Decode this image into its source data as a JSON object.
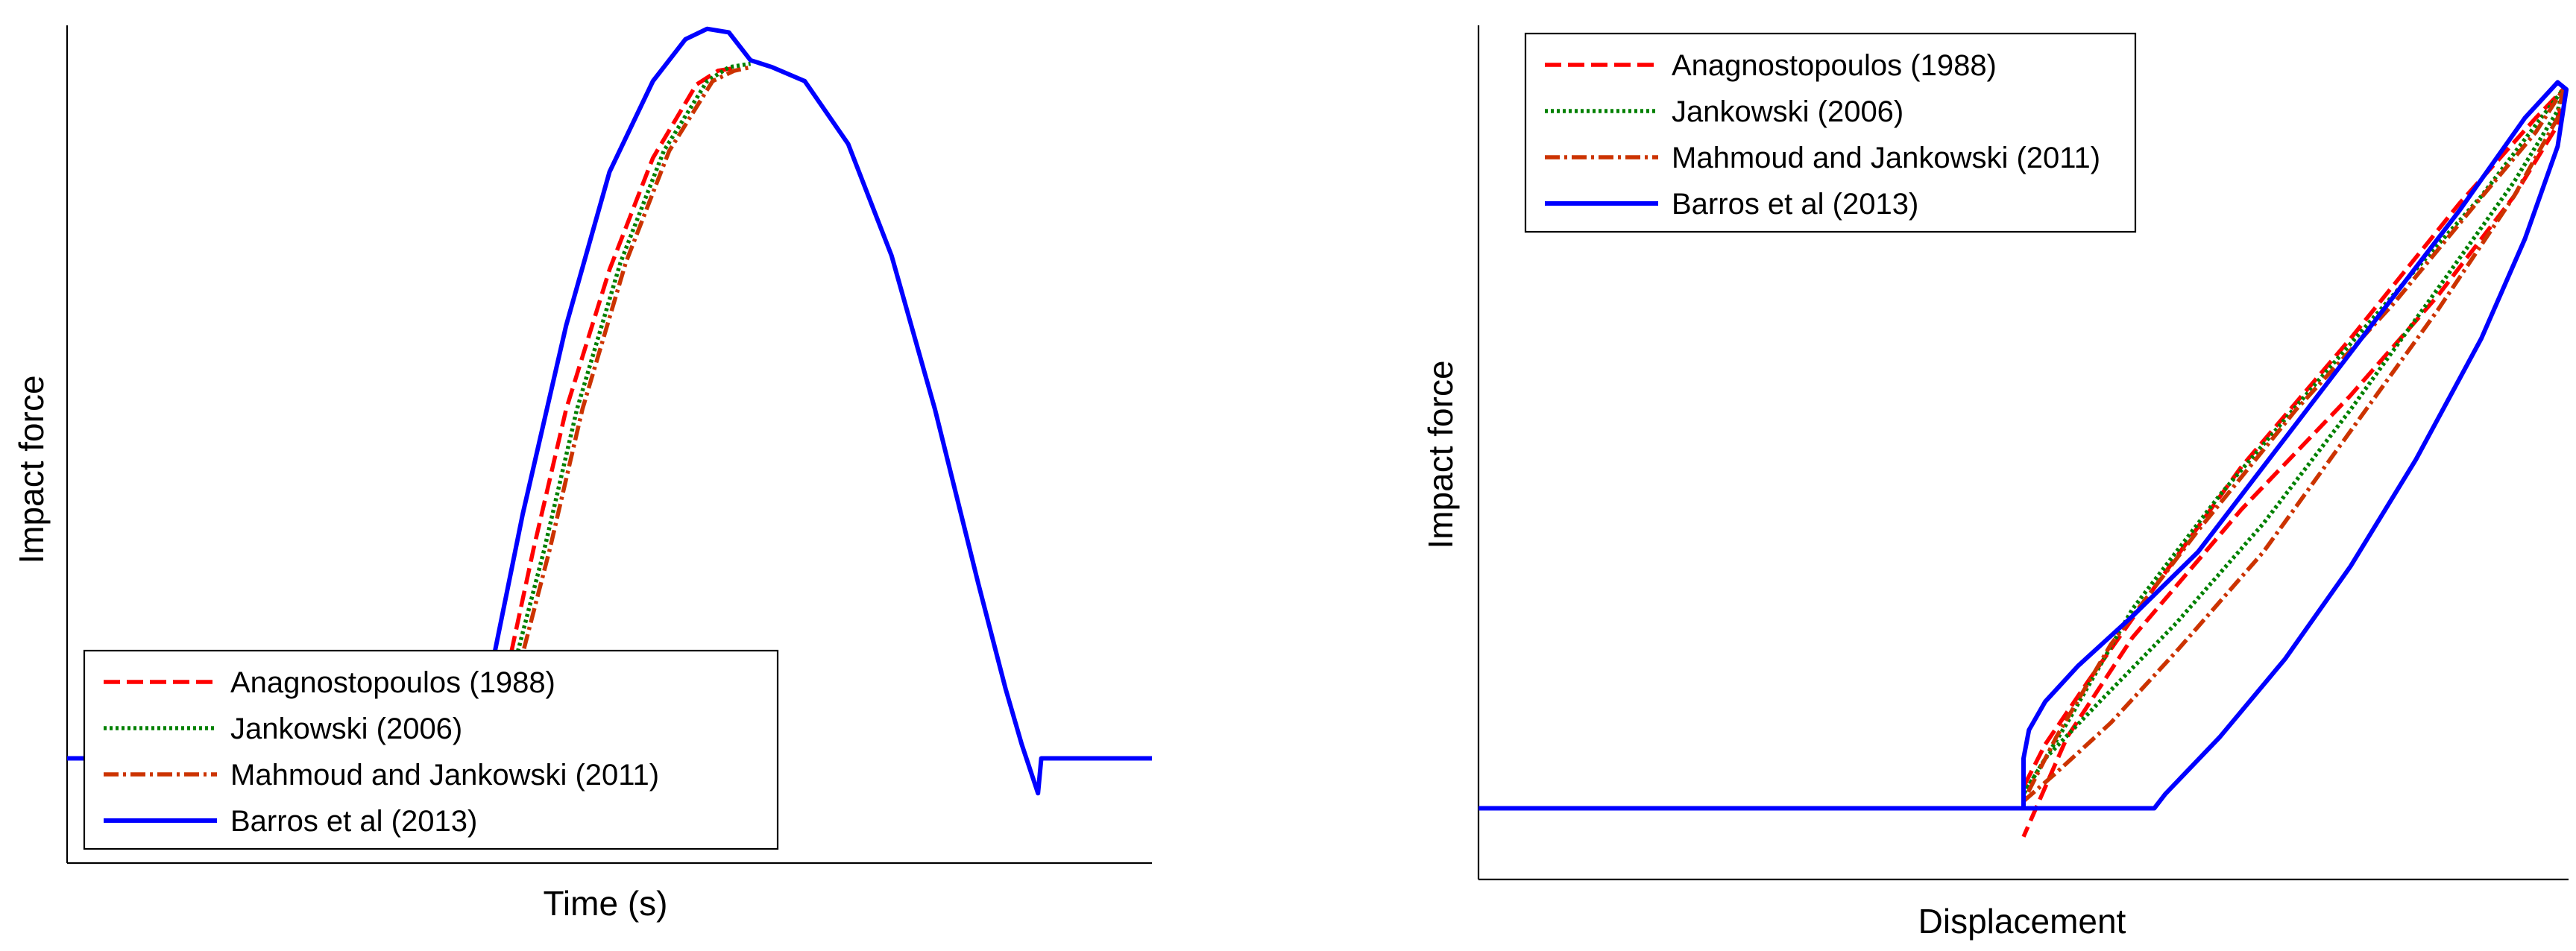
{
  "chart_data": [
    {
      "type": "line",
      "title": "",
      "xlabel": "Time (s)",
      "ylabel": "Impact force",
      "legend_position": "bottom-left",
      "x_ticks": "none",
      "y_ticks": "none",
      "grid": false,
      "x_range": [
        0,
        1
      ],
      "y_range": [
        -0.15,
        1.05
      ],
      "series": [
        {
          "name": "Anagnostopoulos (1988)",
          "color": "#ff0000",
          "dash": "22,9",
          "x": [
            0.405,
            0.43,
            0.46,
            0.5,
            0.54,
            0.58,
            0.6,
            0.62
          ],
          "y": [
            0.12,
            0.3,
            0.5,
            0.7,
            0.86,
            0.965,
            0.985,
            0.99
          ]
        },
        {
          "name": "Jankowski (2006)",
          "color": "#008000",
          "dash": "4,4",
          "x": [
            0.41,
            0.44,
            0.47,
            0.51,
            0.55,
            0.59,
            0.61,
            0.63
          ],
          "y": [
            0.12,
            0.3,
            0.5,
            0.71,
            0.87,
            0.97,
            0.99,
            0.995
          ]
        },
        {
          "name": "Mahmoud and Jankowski (2011)",
          "color": "#cc3300",
          "dash": "20,6,4,6",
          "x": [
            0.415,
            0.445,
            0.475,
            0.515,
            0.555,
            0.595,
            0.615,
            0.63
          ],
          "y": [
            0.12,
            0.3,
            0.5,
            0.71,
            0.87,
            0.97,
            0.985,
            0.99
          ]
        },
        {
          "name": "Barros et al (2013)",
          "color": "#0000ff",
          "dash": "",
          "x": [
            0,
            0.385,
            0.39,
            0.42,
            0.46,
            0.5,
            0.54,
            0.57,
            0.59,
            0.61,
            0.63,
            0.65,
            0.68,
            0.72,
            0.76,
            0.8,
            0.84,
            0.865,
            0.88,
            0.895,
            0.898,
            0.9,
            1.0
          ],
          "y": [
            0.0,
            0.0,
            0.12,
            0.35,
            0.62,
            0.84,
            0.97,
            1.03,
            1.045,
            1.04,
            1.0,
            0.99,
            0.97,
            0.88,
            0.72,
            0.5,
            0.25,
            0.1,
            0.02,
            -0.05,
            0.0,
            0.0,
            0.0
          ]
        }
      ]
    },
    {
      "type": "line",
      "title": "",
      "xlabel": "Displacement",
      "ylabel": "Impact force",
      "legend_position": "top-left",
      "x_ticks": "none",
      "y_ticks": "none",
      "grid": false,
      "x_range": [
        0,
        1
      ],
      "y_range": [
        -0.1,
        1.1
      ],
      "series": [
        {
          "name": "Anagnostopoulos (1988)",
          "color": "#ff0000",
          "dash": "22,9",
          "x": [
            0.5,
            0.5,
            0.51,
            0.52,
            0.56,
            0.62,
            0.7,
            0.8,
            0.9,
            0.97,
            0.995,
            0.99,
            0.95,
            0.88,
            0.8,
            0.7,
            0.6,
            0.54,
            0.5
          ],
          "y": [
            0.0,
            0.03,
            0.06,
            0.09,
            0.18,
            0.31,
            0.48,
            0.66,
            0.85,
            0.97,
            1.01,
            0.96,
            0.86,
            0.72,
            0.58,
            0.42,
            0.24,
            0.1,
            -0.04
          ]
        },
        {
          "name": "Jankowski (2006)",
          "color": "#008000",
          "dash": "4,4",
          "x": [
            0.5,
            0.52,
            0.57,
            0.64,
            0.72,
            0.8,
            0.88,
            0.95,
            0.99,
            0.995,
            0.97,
            0.92,
            0.85,
            0.77,
            0.68,
            0.6,
            0.54,
            0.5
          ],
          "y": [
            0.02,
            0.07,
            0.15,
            0.26,
            0.4,
            0.56,
            0.73,
            0.88,
            0.98,
            1.01,
            0.96,
            0.86,
            0.74,
            0.6,
            0.44,
            0.28,
            0.12,
            0.02
          ]
        },
        {
          "name": "Mahmoud and Jankowski (2011)",
          "color": "#cc3300",
          "dash": "20,6,4,6",
          "x": [
            0.5,
            0.53,
            0.58,
            0.64,
            0.72,
            0.8,
            0.88,
            0.95,
            0.99,
            0.995,
            0.97,
            0.91,
            0.84,
            0.75,
            0.66,
            0.58,
            0.53,
            0.5
          ],
          "y": [
            0.01,
            0.05,
            0.12,
            0.22,
            0.36,
            0.53,
            0.7,
            0.86,
            0.97,
            1.01,
            0.95,
            0.84,
            0.71,
            0.56,
            0.39,
            0.23,
            0.1,
            0.01
          ]
        },
        {
          "name": "Barros et al (2013)",
          "color": "#0000ff",
          "dash": "",
          "x": [
            0,
            0.5,
            0.5,
            0.505,
            0.52,
            0.55,
            0.6,
            0.66,
            0.74,
            0.82,
            0.9,
            0.96,
            0.99,
            0.998,
            0.99,
            0.96,
            0.92,
            0.86,
            0.8,
            0.74,
            0.68,
            0.63,
            0.62,
            0.5
          ],
          "y": [
            0.0,
            0.0,
            0.07,
            0.11,
            0.15,
            0.2,
            0.27,
            0.36,
            0.52,
            0.68,
            0.84,
            0.97,
            1.02,
            1.01,
            0.93,
            0.8,
            0.66,
            0.49,
            0.34,
            0.21,
            0.1,
            0.02,
            0.0,
            0.0
          ]
        }
      ]
    }
  ]
}
